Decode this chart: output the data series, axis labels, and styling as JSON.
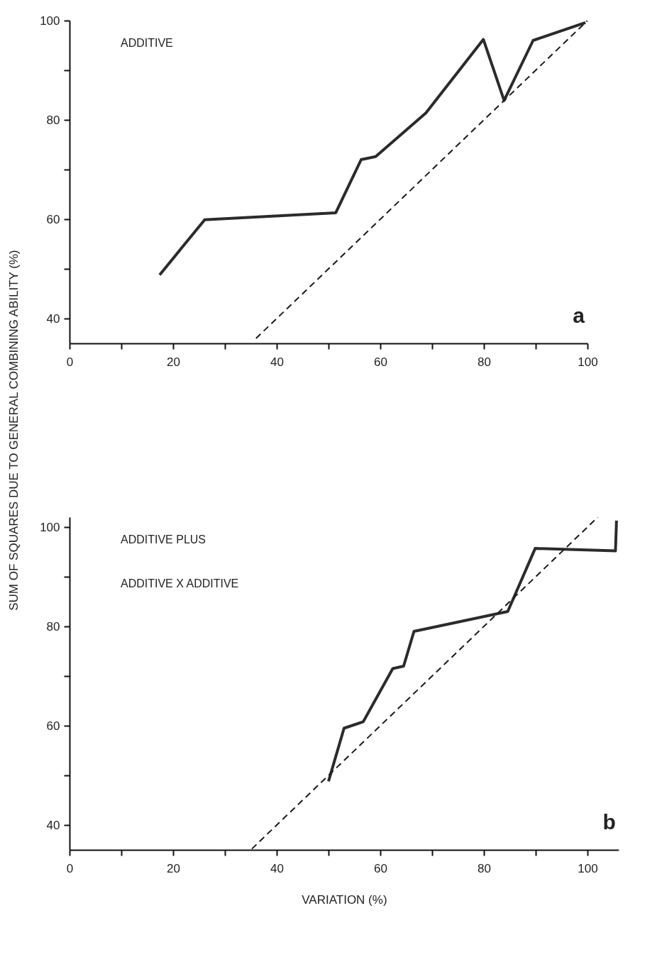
{
  "chart_data": [
    {
      "type": "line",
      "ylabel": "SUM OF SQUARES DUE TO GENERAL COMBINING ABILITY (%)",
      "annotations": [
        "ADDITIVE",
        "a"
      ],
      "xlim": [
        0,
        100
      ],
      "ylim": [
        35,
        100
      ],
      "xticks": [
        0,
        {
          "value": 10,
          "label": null
        },
        20,
        {
          "value": 30,
          "label": null
        },
        40,
        {
          "value": 50,
          "label": null
        },
        60,
        {
          "value": 70,
          "label": null
        },
        80,
        {
          "value": 90,
          "label": null
        },
        100
      ],
      "yticks": [
        40,
        {
          "value": 50,
          "label": null
        },
        60,
        {
          "value": 70,
          "label": null
        },
        80,
        {
          "value": 90,
          "label": null
        },
        100
      ],
      "series": [
        {
          "type": "line",
          "color": "#2b2b2b",
          "line_style": "solid",
          "x": [
            17.4,
            26.1,
            51.4,
            56.3,
            59.1,
            68.8,
            79.9,
            83.9,
            89.5,
            99.6
          ],
          "values": [
            48.8,
            59.9,
            61.3,
            72.0,
            72.6,
            81.4,
            96.2,
            83.9,
            96.0,
            99.6
          ]
        },
        {
          "type": "line",
          "color": "#1a1a1a",
          "line_style": "dashed",
          "x": [
            36,
            100
          ],
          "values": [
            36,
            100
          ]
        }
      ]
    },
    {
      "type": "line",
      "xlabel": "VARIATION (%)",
      "annotations": [
        "ADDITIVE PLUS",
        "ADDITIVE X ADDITIVE",
        "b"
      ],
      "xlim": [
        0,
        106
      ],
      "ylim": [
        35,
        102
      ],
      "xticks": [
        0,
        {
          "value": 10,
          "label": null
        },
        20,
        {
          "value": 30,
          "label": null
        },
        40,
        {
          "value": 50,
          "label": null
        },
        60,
        {
          "value": 70,
          "label": null
        },
        80,
        {
          "value": 90,
          "label": null
        },
        100
      ],
      "yticks": [
        40,
        {
          "value": 50,
          "label": null
        },
        60,
        {
          "value": 70,
          "label": null
        },
        80,
        {
          "value": 90,
          "label": null
        },
        100
      ],
      "series": [
        {
          "type": "line",
          "color": "#2b2b2b",
          "line_style": "solid",
          "x": [
            50.0,
            53.0,
            56.7,
            62.4,
            64.5,
            66.5,
            84.6,
            89.9,
            105.4,
            105.6
          ],
          "values": [
            48.8,
            59.5,
            60.8,
            71.5,
            72.0,
            79.0,
            83.0,
            95.7,
            95.2,
            101.3
          ]
        },
        {
          "type": "line",
          "color": "#1a1a1a",
          "line_style": "dashed",
          "x": [
            35.2,
            102
          ],
          "values": [
            35.2,
            102
          ]
        }
      ]
    }
  ]
}
